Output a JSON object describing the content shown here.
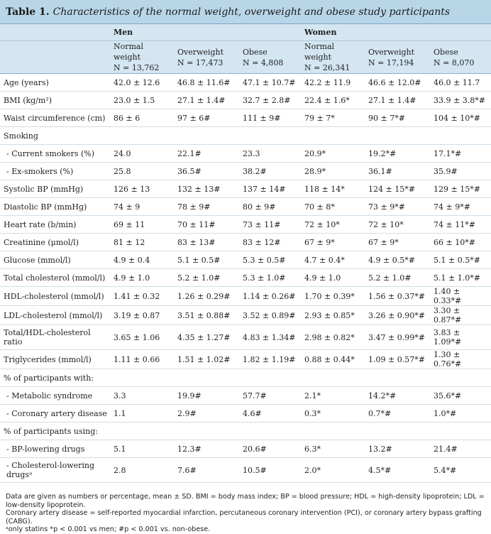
{
  "table": {
    "label": "Table 1.",
    "caption": "Characteristics of the normal weight, overweight and obese study participants",
    "groups": [
      "Men",
      "Women"
    ],
    "subheaders": [
      [
        "Normal weight",
        "N = 13,762"
      ],
      [
        "Overweight",
        "N = 17,473"
      ],
      [
        "Obese",
        "N = 4,808"
      ],
      [
        "Normal weight",
        "N = 26,341"
      ],
      [
        "Overweight",
        "N = 17,194"
      ],
      [
        "Obese",
        "N = 8,070"
      ]
    ],
    "rows": [
      {
        "label": "Age (years)",
        "cells": [
          "42.0 ± 12.6",
          "46.8 ± 11.6#",
          "47.1 ± 10.7#",
          "42.2 ± 11.9",
          "46.6 ± 12.0#",
          "46.0 ± 11.7"
        ]
      },
      {
        "label": "BMI (kg/m²)",
        "cells": [
          "23.0 ± 1.5",
          "27.1 ± 1.4#",
          "32.7 ± 2.8#",
          "22.4 ± 1.6*",
          "27.1 ± 1.4#",
          "33.9 ± 3.8*#"
        ]
      },
      {
        "label": "Waist circumference (cm)",
        "cells": [
          "86 ± 6",
          "97 ± 6#",
          "111 ± 9#",
          "79 ± 7*",
          "90 ± 7*#",
          "104 ± 10*#"
        ]
      },
      {
        "label": "Smoking",
        "cells": [
          "",
          "",
          "",
          "",
          "",
          ""
        ]
      },
      {
        "label": "- Current smokers (%)",
        "cells": [
          "24.0",
          "22.1#",
          "23.3",
          "20.9*",
          "19.2*#",
          "17.1*#"
        ]
      },
      {
        "label": "- Ex-smokers (%)",
        "cells": [
          "25.8",
          "36.5#",
          "38.2#",
          "28.9*",
          "36.1#",
          "35.9#"
        ]
      },
      {
        "label": "Systolic BP (mmHg)",
        "cells": [
          "126 ± 13",
          "132 ± 13#",
          "137 ± 14#",
          "118 ± 14*",
          "124 ± 15*#",
          "129 ± 15*#"
        ]
      },
      {
        "label": "Diastolic BP (mmHg)",
        "cells": [
          "74 ± 9",
          "78 ± 9#",
          "80 ± 9#",
          "70 ± 8*",
          "73 ± 9*#",
          "74 ± 9*#"
        ]
      },
      {
        "label": "Heart rate (b/min)",
        "cells": [
          "69 ± 11",
          "70 ± 11#",
          "73 ± 11#",
          "72 ± 10*",
          "72 ± 10*",
          "74 ± 11*#"
        ]
      },
      {
        "label": "Creatinine (μmol/l)",
        "cells": [
          "81 ± 12",
          "83 ± 13#",
          "83 ± 12#",
          "67 ± 9*",
          "67 ± 9*",
          "66 ± 10*#"
        ]
      },
      {
        "label": "Glucose (mmol/l)",
        "cells": [
          "4.9 ± 0.4",
          "5.1 ± 0.5#",
          "5.3 ± 0.5#",
          "4.7 ± 0.4*",
          "4.9 ± 0.5*#",
          "5.1 ± 0.5*#"
        ]
      },
      {
        "label": "Total cholesterol (mmol/l)",
        "cells": [
          "4.9 ± 1.0",
          "5.2 ± 1.0#",
          "5.3 ± 1.0#",
          "4.9 ± 1.0",
          "5.2 ± 1.0#",
          "5.1 ± 1.0*#"
        ]
      },
      {
        "label": "HDL-cholesterol (mmol/l)",
        "cells": [
          "1.41 ± 0.32",
          "1.26 ± 0.29#",
          "1.14 ± 0.26#",
          "1.70 ± 0.39*",
          "1.56 ± 0.37*#",
          "1.40 ± 0.33*#"
        ]
      },
      {
        "label": "LDL-cholesterol (mmol/l)",
        "cells": [
          "3.19 ± 0.87",
          "3.51 ± 0.88#",
          "3.52 ± 0.89#",
          "2.93 ± 0.85*",
          "3.26 ± 0.90*#",
          "3.30 ± 0.87*#"
        ]
      },
      {
        "label": "Total/HDL-cholesterol ratio",
        "cells": [
          "3.65 ± 1.06",
          "4.35 ± 1.27#",
          "4.83 ± 1.34#",
          "2.98 ± 0.82*",
          "3.47 ± 0.99*#",
          "3.83 ± 1.09*#"
        ]
      },
      {
        "label": "Triglycerides (mmol/l)",
        "cells": [
          "1.11 ± 0.66",
          "1.51 ± 1.02#",
          "1.82 ± 1.19#",
          "0.88 ± 0.44*",
          "1.09 ± 0.57*#",
          "1.30 ± 0.76*#"
        ]
      },
      {
        "label": "% of participants with:",
        "cells": [
          "",
          "",
          "",
          "",
          "",
          ""
        ]
      },
      {
        "label": "- Metabolic syndrome",
        "cells": [
          "3.3",
          "19.9#",
          "57.7#",
          "2.1*",
          "14.2*#",
          "35.6*#"
        ]
      },
      {
        "label": "- Coronary artery disease",
        "cells": [
          "1.1",
          "2.9#",
          "4.6#",
          "0.3*",
          "0.7*#",
          "1.0*#"
        ]
      },
      {
        "label": "% of participants using:",
        "cells": [
          "",
          "",
          "",
          "",
          "",
          ""
        ]
      },
      {
        "label": "- BP-lowering drugs",
        "cells": [
          "5.1",
          "12.3#",
          "20.6#",
          "6.3*",
          "13.2#",
          "21.4#"
        ]
      },
      {
        "label": "- Cholesterol-lowering drugsᵃ",
        "cells": [
          "2.8",
          "7.6#",
          "10.5#",
          "2.0*",
          "4.5*#",
          "5.4*#"
        ]
      }
    ],
    "footnotes": [
      "Data are given as numbers or percentage, mean ± SD. BMI = body mass index; BP = blood pressure; HDL = high-density lipoprotein; LDL = low-density lipoprotein.",
      "Coronary artery disease = self-reported myocardial infarction, percutaneous coronary intervention (PCI), or coronary artery bypass grafting (CABG).",
      "ᵃonly statins *p < 0.001 vs men; #p < 0.001 vs. non-obese."
    ]
  }
}
